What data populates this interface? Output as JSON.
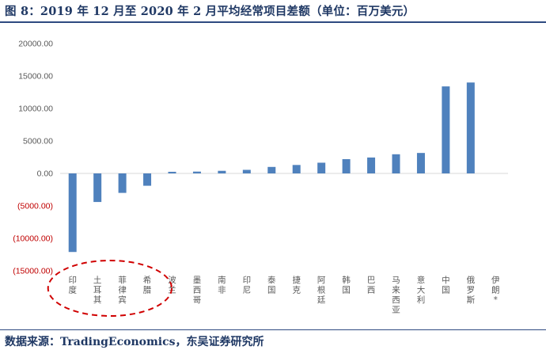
{
  "title": "图 8：2019 年 12 月至 2020 年 2 月平均经常项目差额（单位：百万美元）",
  "source": "数据来源：TradingEconomics，东吴证券研究所",
  "colors": {
    "bar": "#4f81bd",
    "negative_label": "#c00000",
    "positive_label": "#595959",
    "highlight": "#d00000"
  },
  "chart_data": {
    "type": "bar",
    "title": "",
    "xlabel": "",
    "ylabel": "",
    "ylim": [
      -15000,
      20000
    ],
    "grid": false,
    "y_ticks": [
      {
        "value": 20000,
        "label": "20000.00"
      },
      {
        "value": 15000,
        "label": "15000.00"
      },
      {
        "value": 10000,
        "label": "10000.00"
      },
      {
        "value": 5000,
        "label": "5000.00"
      },
      {
        "value": 0,
        "label": "0.00"
      },
      {
        "value": -5000,
        "label": "(5000.00)"
      },
      {
        "value": -10000,
        "label": "(10000.00)"
      },
      {
        "value": -15000,
        "label": "(15000.00)"
      }
    ],
    "categories": [
      "印度",
      "土耳其",
      "菲律宾",
      "希腊",
      "波兰",
      "墨西哥",
      "南非",
      "印尼",
      "泰国",
      "捷克",
      "阿根廷",
      "韩国",
      "巴西",
      "马来西亚",
      "意大利",
      "中国",
      "俄罗斯",
      "伊朗*"
    ],
    "values": [
      -12100,
      -4400,
      -3000,
      -1900,
      250,
      280,
      400,
      550,
      1000,
      1300,
      1650,
      2200,
      2450,
      2950,
      3150,
      13400,
      14000,
      0
    ],
    "highlight": {
      "shape": "dashed-ellipse",
      "categories": [
        "印度",
        "土耳其",
        "菲律宾",
        "希腊"
      ]
    }
  }
}
